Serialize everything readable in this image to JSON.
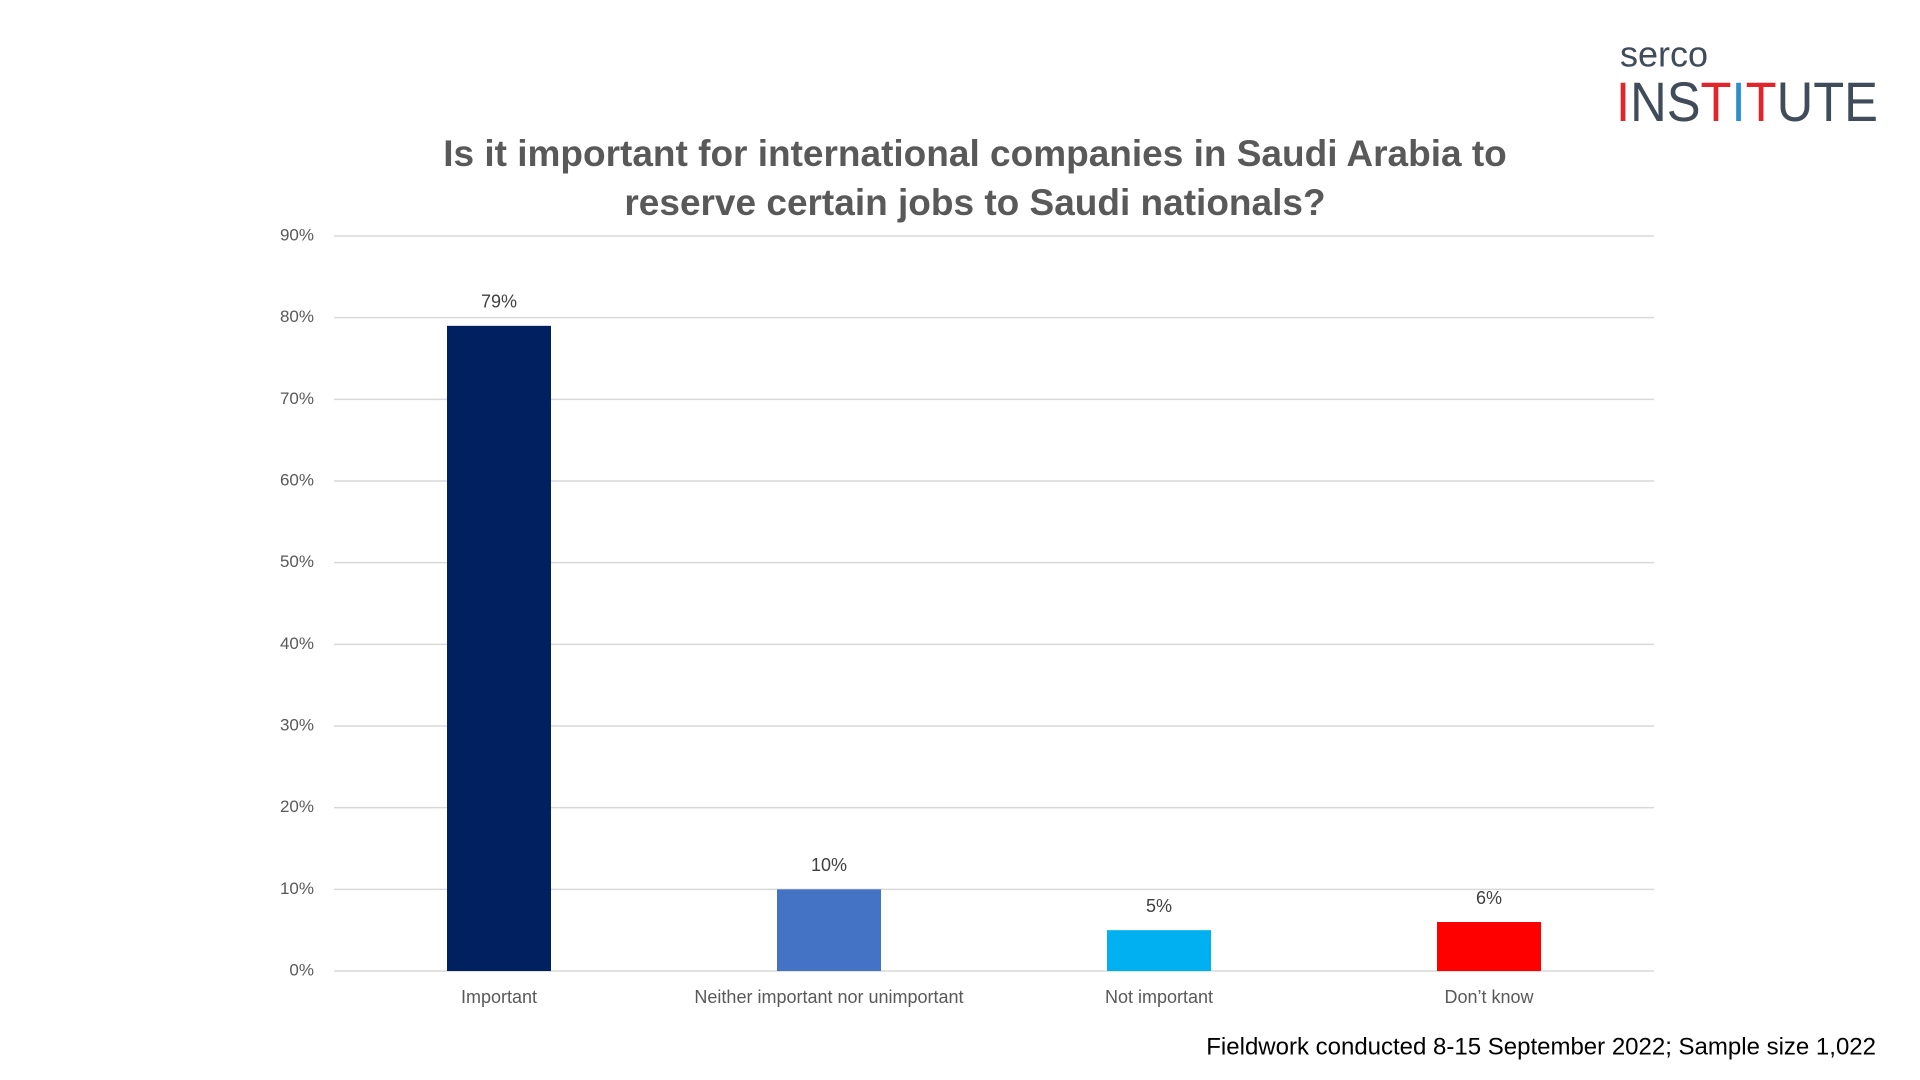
{
  "logo": {
    "top": "serco",
    "bottom": "INSTITUTE"
  },
  "chart_data": {
    "type": "bar",
    "title": [
      "Is it important for international companies in Saudi Arabia to",
      "reserve certain jobs to Saudi nationals?"
    ],
    "categories": [
      "Important",
      "Neither important nor unimportant",
      "Not important",
      "Don’t know"
    ],
    "values": [
      79,
      10,
      5,
      6
    ],
    "value_labels": [
      "79%",
      "10%",
      "5%",
      "6%"
    ],
    "colors": [
      "#002060",
      "#4472c4",
      "#00b0f0",
      "#ff0000"
    ],
    "ylim": [
      0,
      90
    ],
    "yticks": [
      {
        "value": 0,
        "label": "0%"
      },
      {
        "value": 10,
        "label": "10%"
      },
      {
        "value": 20,
        "label": "20%"
      },
      {
        "value": 30,
        "label": "30%"
      },
      {
        "value": 40,
        "label": "40%"
      },
      {
        "value": 50,
        "label": "50%"
      },
      {
        "value": 60,
        "label": "60%"
      },
      {
        "value": 70,
        "label": "70%"
      },
      {
        "value": 80,
        "label": "80%"
      },
      {
        "value": 90,
        "label": "90%"
      }
    ],
    "grid": true
  },
  "footnote": "Fieldwork conducted 8-15 September 2022; Sample size 1,022"
}
